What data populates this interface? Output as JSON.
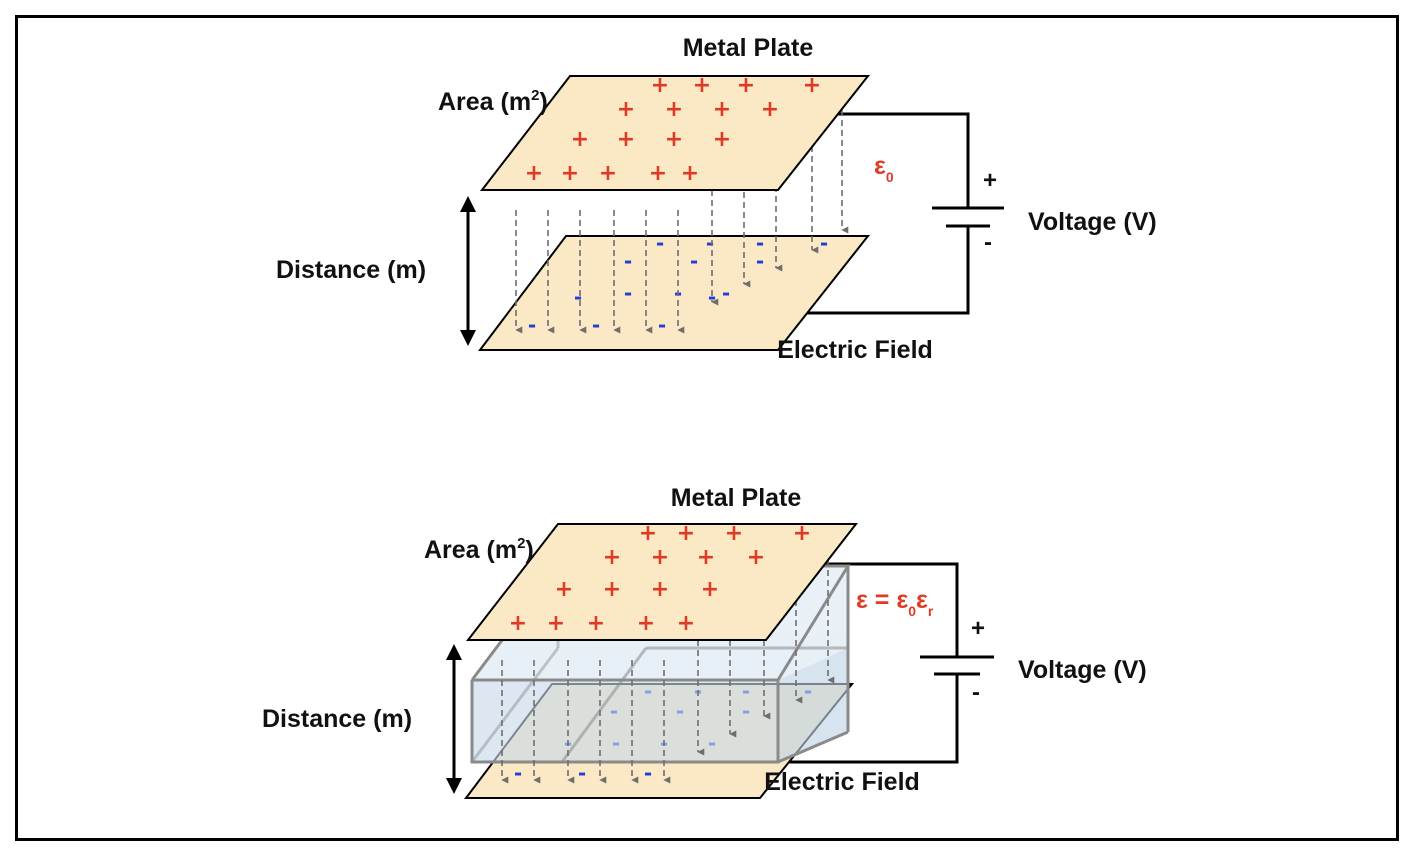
{
  "top": {
    "plate_label": "Metal Plate",
    "area_label": "Area (m",
    "area_sup": "2",
    "area_close": ")",
    "distance_label": "Distance (m)",
    "field_label": "Electric Field",
    "voltage_label": "Voltage (V)",
    "permittivity_symbol": "ε",
    "permittivity_sub": "0",
    "battery_plus": "+",
    "battery_minus": "-"
  },
  "bottom": {
    "plate_label": "Metal Plate",
    "area_label": "Area (m",
    "area_sup": "2",
    "area_close": ")",
    "distance_label": "Distance (m)",
    "field_label": "Electric Field",
    "voltage_label": "Voltage (V)",
    "permittivity_eq": "ε = ε",
    "permittivity_sub0": "0",
    "permittivity_eps": "ε",
    "permittivity_subr": "r",
    "battery_plus": "+",
    "battery_minus": "-"
  },
  "colors": {
    "plate_fill": "#fbe9c6",
    "positive_charge": "#e03a26",
    "negative_charge": "#1f3fd6",
    "field_line": "#6e6e6e",
    "dielectric_fill": "#cfe0ef",
    "dielectric_edge": "#8a8a8a",
    "epsilon_text": "#e03a26"
  }
}
